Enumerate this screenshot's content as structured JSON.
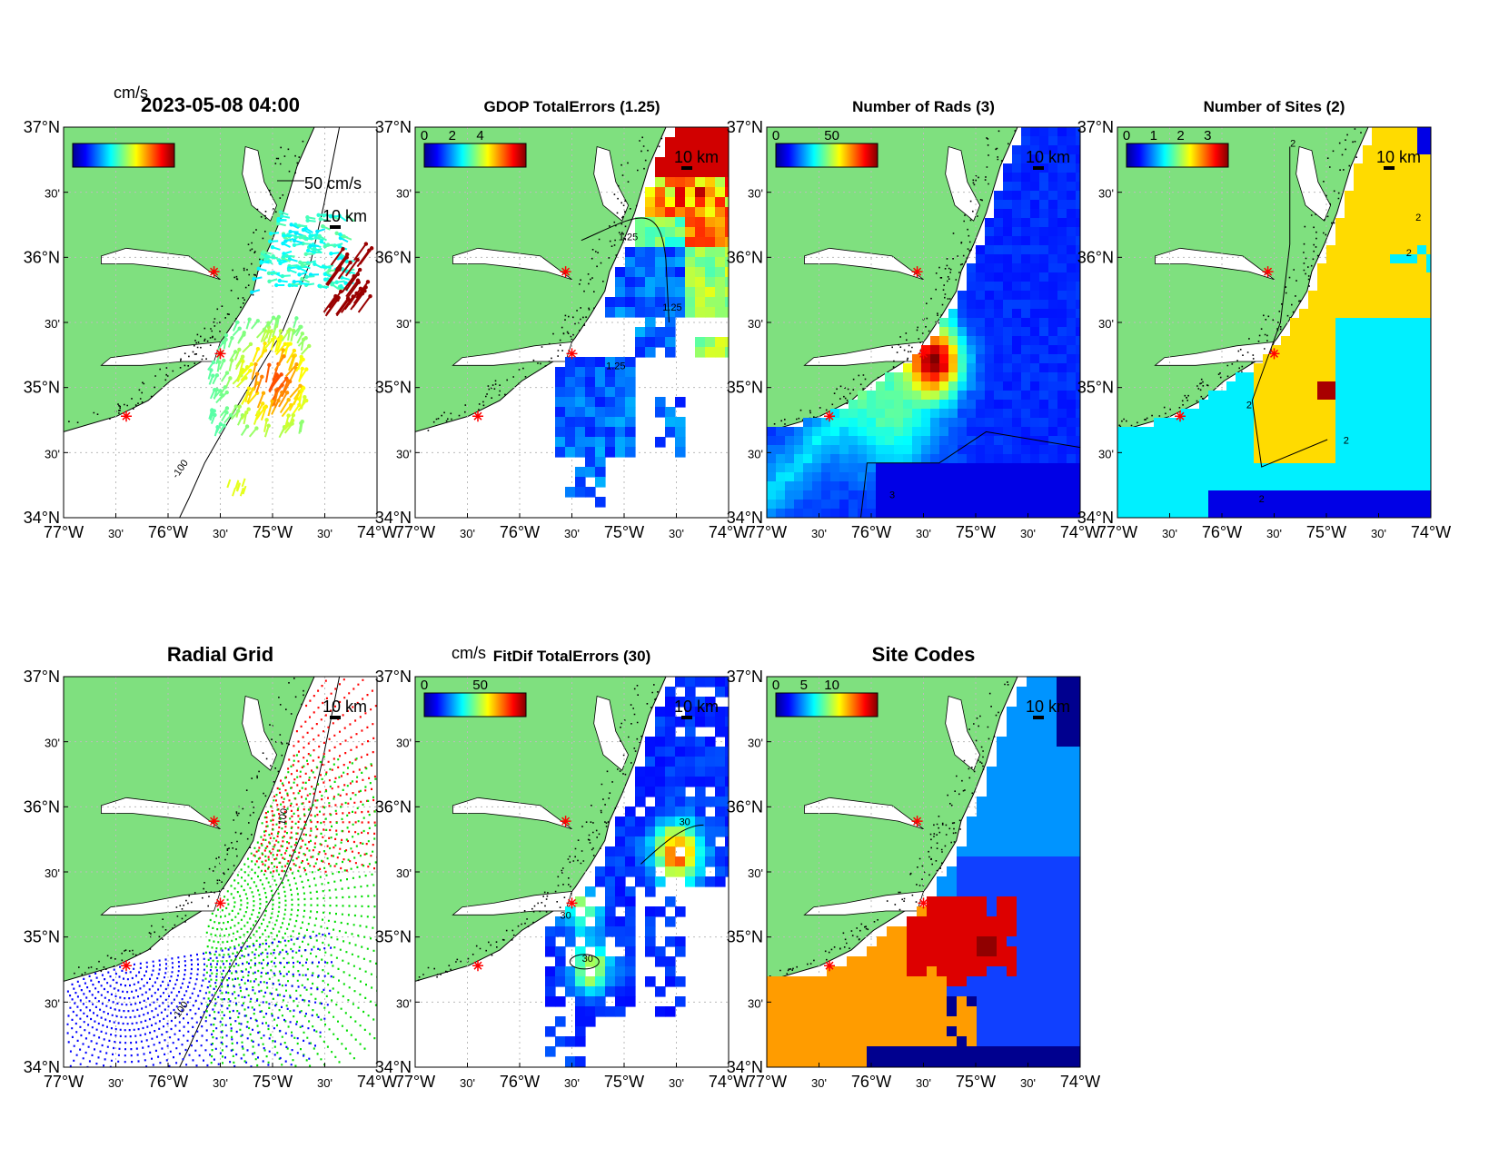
{
  "lon_labels": [
    "77°W",
    "30'",
    "76°W",
    "30'",
    "75°W",
    "30'",
    "74°W"
  ],
  "lat_labels": [
    "34°N",
    "30'",
    "35°N",
    "30'",
    "36°N",
    "30'",
    "37°N"
  ],
  "scale_bar_label": "10 km",
  "panels": [
    {
      "id": "currents",
      "title": "2023-05-08 04:00",
      "units": "cm/s",
      "colorbar_ticks": [],
      "vector_scale_label": "50 cm/s",
      "contour_labels": [
        "-100"
      ]
    },
    {
      "id": "gdop",
      "title": "GDOP TotalErrors (1.25)",
      "units": "",
      "colorbar_ticks": [
        "0",
        "2",
        "4"
      ],
      "contour_labels": [
        "1.25",
        "1.25",
        "1.25"
      ]
    },
    {
      "id": "nrads",
      "title": "Number of Rads (3)",
      "units": "",
      "colorbar_ticks": [
        "0",
        "50"
      ],
      "contour_labels": [
        "3"
      ]
    },
    {
      "id": "nsites",
      "title": "Number of Sites (2)",
      "units": "",
      "colorbar_ticks": [
        "0",
        "1",
        "2",
        "3"
      ],
      "contour_labels": [
        "2",
        "2",
        "2",
        "2",
        "2",
        "2"
      ]
    },
    {
      "id": "radgrid",
      "title": "Radial Grid",
      "units": "",
      "colorbar_ticks": [],
      "contour_labels": [
        "100",
        "-100"
      ]
    },
    {
      "id": "fitdif",
      "title": "FitDif TotalErrors (30)",
      "units": "cm/s",
      "colorbar_ticks": [
        "0",
        "50"
      ],
      "contour_labels": [
        "30",
        "30",
        "30"
      ]
    },
    {
      "id": "sitecodes",
      "title": "Site Codes",
      "units": "",
      "colorbar_ticks": [
        "0",
        "5",
        "10"
      ],
      "contour_labels": []
    }
  ],
  "colors": {
    "land": "#7fe07f",
    "site_marker": "#ff0000",
    "radial_site_1": "#ff0000",
    "radial_site_2": "#00dd00",
    "radial_site_3": "#0000ff"
  }
}
